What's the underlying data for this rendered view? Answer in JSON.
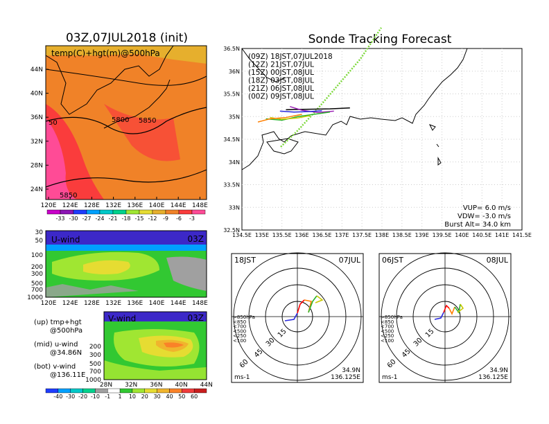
{
  "left_panel": {
    "title": "03Z,07JUL2018 (init)",
    "map_label": "temp(C)+hgt(m)@500hPa",
    "lat_ticks": [
      "44N",
      "40N",
      "36N",
      "32N",
      "28N",
      "24N"
    ],
    "lon_ticks": [
      "120E",
      "124E",
      "128E",
      "132E",
      "136E",
      "140E",
      "144E",
      "148E"
    ],
    "contour_labels": [
      "5800",
      "5850",
      "5850",
      "50"
    ],
    "temp_colorbar": [
      "-33",
      "-30",
      "-27",
      "-24",
      "-21",
      "-18",
      "-15",
      "-12",
      "-9",
      "-6",
      "-3"
    ],
    "temp_colors": [
      "#c800c8",
      "#8c14b4",
      "#1e3cff",
      "#00a0ff",
      "#00c8c8",
      "#00d28c",
      "#a0e632",
      "#e6dc32",
      "#e6af2d",
      "#f08228",
      "#fa3c3c",
      "#ff4b96"
    ]
  },
  "uwind_panel": {
    "label": "U-wind",
    "time": "03Z",
    "p_ticks": [
      "30",
      "50",
      "100",
      "200",
      "300",
      "500",
      "700",
      "1000"
    ],
    "lon_ticks": [
      "120E",
      "124E",
      "128E",
      "132E",
      "136E",
      "140E",
      "144E",
      "148E"
    ]
  },
  "vwind_panel": {
    "label": "V-wind",
    "time": "03Z",
    "p_ticks": [
      "200",
      "300",
      "500",
      "700",
      "1000"
    ],
    "lat_ticks": [
      "28N",
      "32N",
      "36N",
      "40N",
      "44N"
    ]
  },
  "notes": [
    {
      "line1": "(up) tmp+hgt",
      "line2": "@500hPa"
    },
    {
      "line1": "(mid) u-wind",
      "line2": "@34.86N"
    },
    {
      "line1": "(bot) v-wind",
      "line2": "@136.11E"
    }
  ],
  "wind_colorbar": [
    "-40",
    "-30",
    "-20",
    "-10",
    "-1",
    "1",
    "10",
    "20",
    "30",
    "40",
    "50",
    "60"
  ],
  "wind_colors": [
    "#1e3cff",
    "#00a0ff",
    "#00c8c8",
    "#00d28c",
    "#a0a0a0",
    "#ffffff",
    "#32c832",
    "#a0e632",
    "#e6dc32",
    "#f0b42d",
    "#fa8228",
    "#f03c3c",
    "#c81e1e"
  ],
  "track_panel": {
    "title": "Sonde Tracking Forecast",
    "lat_ticks": [
      "36.5N",
      "36N",
      "35.5N",
      "35N",
      "34.5N",
      "34N",
      "33.5N",
      "33N",
      "32.5N"
    ],
    "lon_ticks": [
      "134.5E",
      "135E",
      "135.5E",
      "136E",
      "136.5E",
      "137E",
      "137.5E",
      "138E",
      "138.5E",
      "139E",
      "139.5E",
      "140E",
      "140.5E",
      "141E",
      "141.5E"
    ],
    "legend": [
      {
        "label": "(09Z)  18JST,07JUL2018",
        "color": "#000000"
      },
      {
        "label": "(12Z)  21JST,07JUL",
        "color": "#9a1fb4"
      },
      {
        "label": "(15Z)  00JST,08JUL",
        "color": "#2828dc"
      },
      {
        "label": "(18Z)  03JST,08JUL",
        "color": "#28b428"
      },
      {
        "label": "(21Z)  06JST,08JUL",
        "color": "#c8c800"
      },
      {
        "label": "(00Z)  09JST,08JUL",
        "color": "#ff7f00"
      }
    ],
    "vup": "VUP=  6.0 m/s",
    "vdw": "VDW= -3.0 m/s",
    "burst": "Burst Alt= 34.0 km"
  },
  "hodo_left": {
    "time": "18JST",
    "date": "07JUL",
    "ring_labels": [
      "15",
      "30",
      "45",
      "60"
    ],
    "levels": [
      ">850hPa",
      "<850",
      "<700",
      "<500",
      "<250",
      "<100"
    ],
    "level_colors": [
      "#ff0000",
      "#ff7f00",
      "#c8c800",
      "#28b428",
      "#28c8c8",
      "#2828dc"
    ],
    "unit": "ms-1",
    "loc_lat": "34.9N",
    "loc_lon": "136.125E"
  },
  "hodo_right": {
    "time": "06JST",
    "date": "08JUL",
    "ring_labels": [
      "15",
      "30",
      "45",
      "60"
    ],
    "levels": [
      ">850hPa",
      "<850",
      "<700",
      "<500",
      "<250",
      "<100"
    ],
    "level_colors": [
      "#ff0000",
      "#ff7f00",
      "#c8c800",
      "#28b428",
      "#28c8c8",
      "#2828dc"
    ],
    "unit": "ms-1",
    "loc_lat": "34.9N",
    "loc_lon": "136.125E"
  },
  "chart_data": [
    {
      "type": "heatmap",
      "title": "03Z,07JUL2018 (init)",
      "subtitle": "temp(C)+hgt(m)@500hPa",
      "x_ticks": [
        "120E",
        "124E",
        "128E",
        "132E",
        "136E",
        "140E",
        "144E",
        "148E"
      ],
      "y_ticks": [
        "44N",
        "40N",
        "36N",
        "32N",
        "28N",
        "24N"
      ],
      "colorbar": [
        -33,
        -30,
        -27,
        -24,
        -21,
        -18,
        -15,
        -12,
        -9,
        -6,
        -3
      ],
      "contour_labels": [
        5800,
        5850,
        5850,
        50
      ]
    },
    {
      "type": "heatmap",
      "title": "U-wind",
      "x_ticks": [
        "120E",
        "124E",
        "128E",
        "132E",
        "136E",
        "140E",
        "144E",
        "148E"
      ],
      "y_ticks": [
        30,
        50,
        100,
        200,
        300,
        500,
        700,
        1000
      ]
    },
    {
      "type": "heatmap",
      "title": "V-wind",
      "x_ticks": [
        "28N",
        "32N",
        "36N",
        "40N",
        "44N"
      ],
      "y_ticks": [
        200,
        300,
        500,
        700,
        1000
      ],
      "colorbar": [
        -40,
        -30,
        -20,
        -10,
        -1,
        1,
        10,
        20,
        30,
        40,
        50,
        60
      ]
    },
    {
      "type": "line",
      "title": "Sonde Tracking Forecast",
      "xlim": [
        134.5,
        141.5
      ],
      "ylim": [
        32.5,
        36.5
      ],
      "series": [
        {
          "name": "(09Z)  18JST,07JUL2018",
          "x": [
            135.6,
            136.1,
            136.7,
            137.2
          ],
          "y": [
            35.15,
            35.16,
            35.17,
            35.19
          ]
        },
        {
          "name": "(12Z)  21JST,07JUL",
          "x": [
            135.7,
            136.0,
            136.4,
            136.8
          ],
          "y": [
            35.22,
            35.14,
            35.09,
            35.12
          ]
        },
        {
          "name": "(15Z)  00JST,08JUL",
          "x": [
            135.45,
            135.8,
            136.2,
            136.5
          ],
          "y": [
            35.12,
            35.1,
            35.11,
            35.13
          ]
        },
        {
          "name": "(18Z)  03JST,08JUL",
          "x": [
            135.1,
            135.5,
            135.9,
            136.3,
            136.7
          ],
          "y": [
            34.95,
            34.92,
            35.0,
            35.05,
            35.1
          ]
        },
        {
          "name": "(21Z)  06JST,08JUL",
          "x": [
            135.2,
            135.5,
            135.9,
            136.2
          ],
          "y": [
            34.98,
            34.94,
            34.97,
            35.02
          ]
        },
        {
          "name": "(00Z)  09JST,08JUL",
          "x": [
            134.9,
            135.2,
            135.6,
            136.0
          ],
          "y": [
            34.88,
            34.95,
            34.98,
            35.05
          ]
        }
      ]
    }
  ]
}
